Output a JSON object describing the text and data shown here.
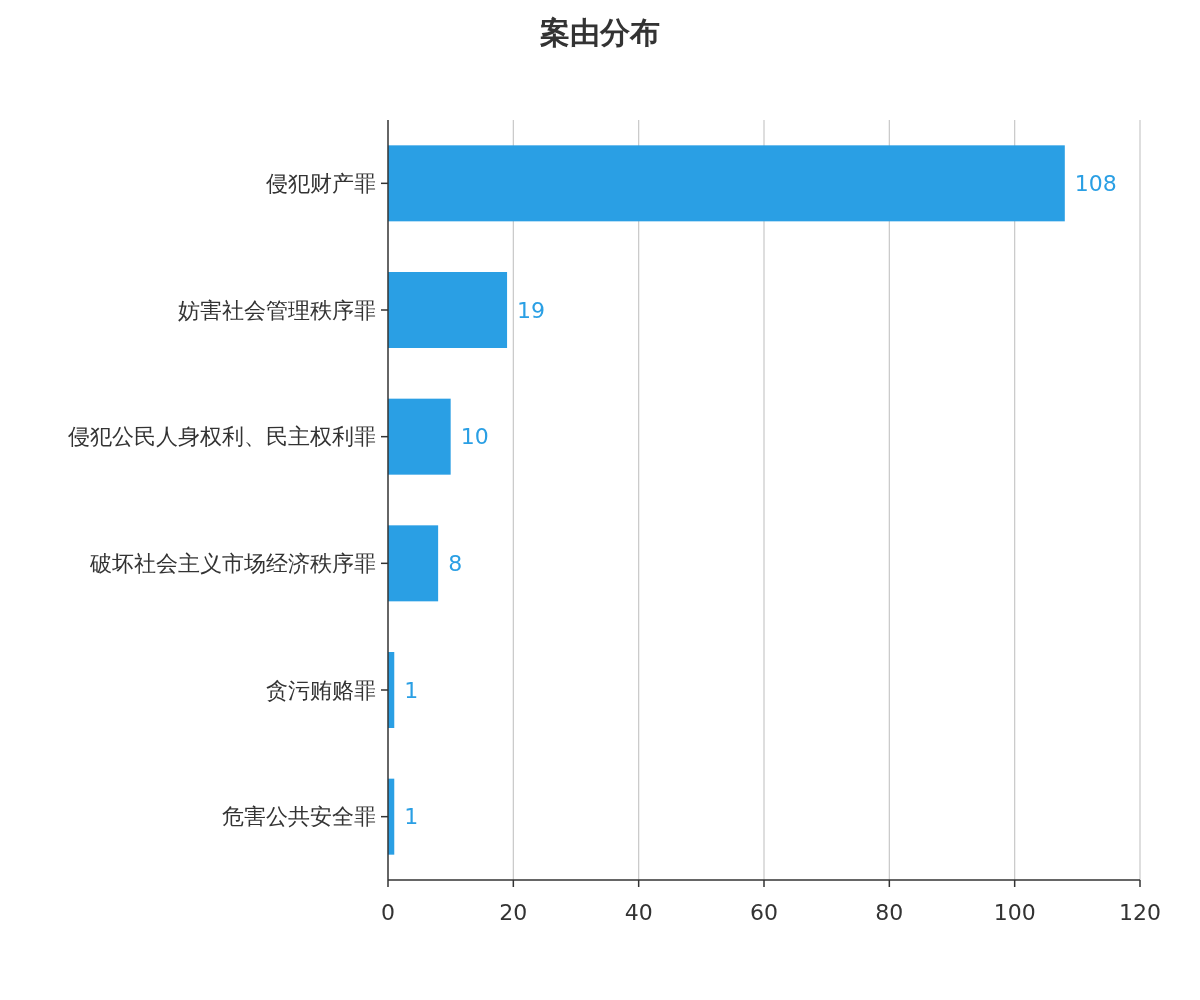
{
  "chart_data": {
    "type": "bar",
    "orientation": "horizontal",
    "title": "案由分布",
    "categories": [
      "侵犯财产罪",
      "妨害社会管理秩序罪",
      "侵犯公民人身权利、民主权利罪",
      "破坏社会主义市场经济秩序罪",
      "贪污贿赂罪",
      "危害公共安全罪"
    ],
    "values": [
      108,
      19,
      10,
      8,
      1,
      1
    ],
    "color": "#2a9fe4",
    "xlim": [
      0,
      120
    ],
    "xticks": [
      0,
      20,
      40,
      60,
      80,
      100,
      120
    ],
    "grid": "x",
    "data_labels": true
  }
}
